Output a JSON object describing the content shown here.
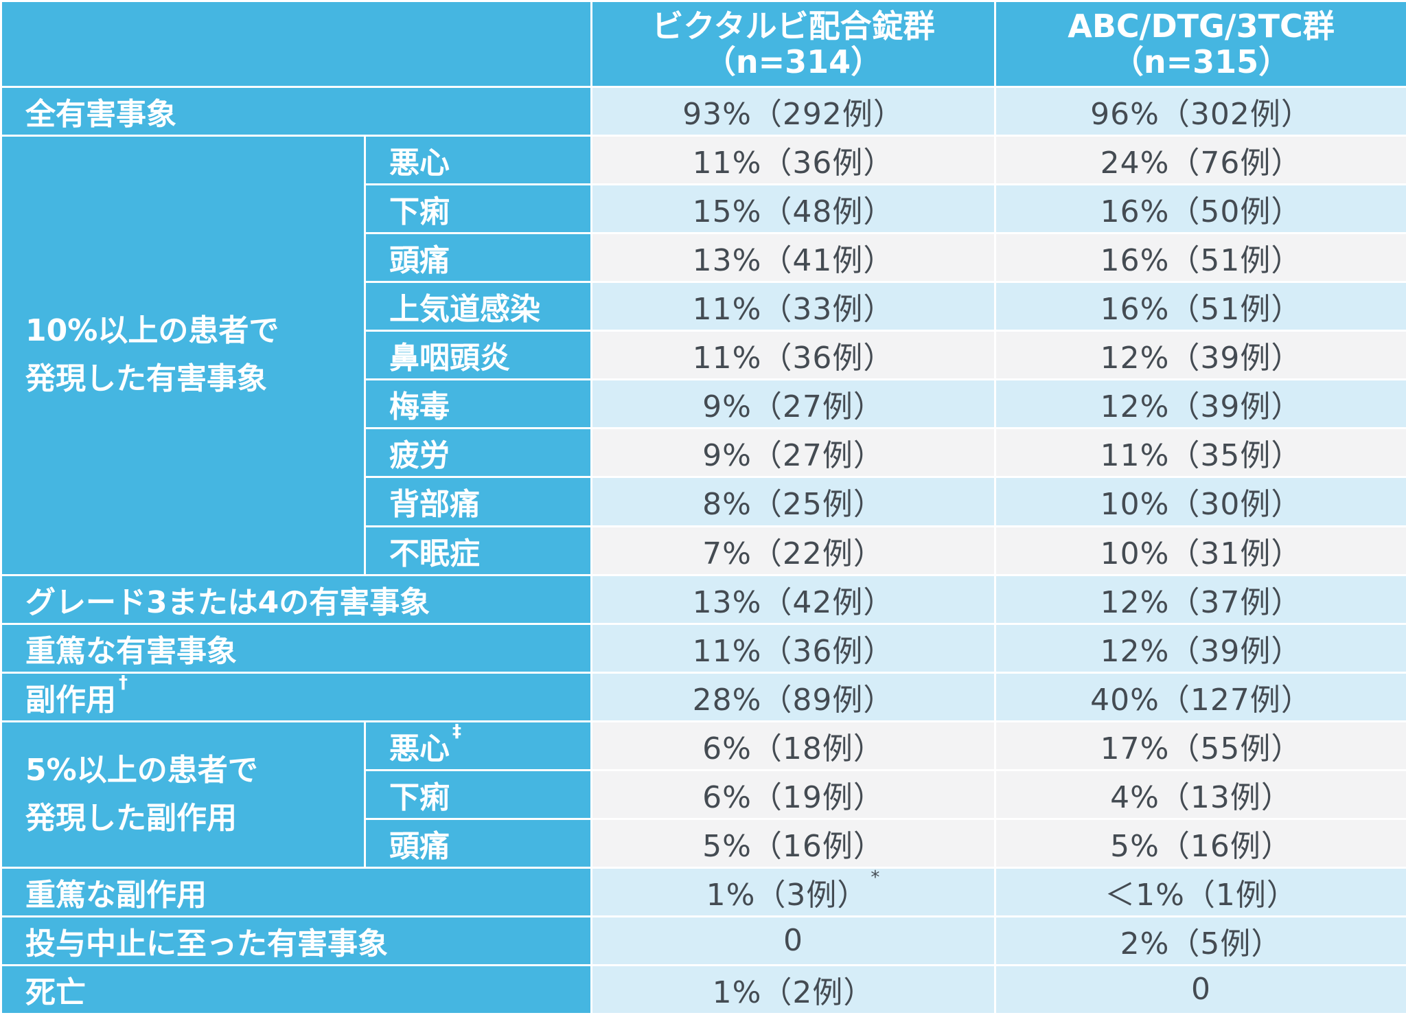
{
  "header": {
    "col1_line1": "ビクタルビ配合錠群",
    "col1_line2": "（n=314）",
    "col2_line1": "ABC/DTG/3TC群",
    "col2_line2": "（n=315）"
  },
  "rows": [
    {
      "label": "全有害事象",
      "v1": "93%（292例）",
      "v2": "96%（302例）"
    },
    {
      "group_line1": "10%以上の患者で",
      "group_line2": "発現した有害事象",
      "sub": "悪心",
      "v1": "11%（36例）",
      "v2": "24%（76例）"
    },
    {
      "sub": "下痢",
      "v1": "15%（48例）",
      "v2": "16%（50例）"
    },
    {
      "sub": "頭痛",
      "v1": "13%（41例）",
      "v2": "16%（51例）"
    },
    {
      "sub": "上気道感染",
      "v1": "11%（33例）",
      "v2": "16%（51例）"
    },
    {
      "sub": "鼻咽頭炎",
      "v1": "11%（36例）",
      "v2": "12%（39例）"
    },
    {
      "sub": "梅毒",
      "v1": "9%（27例）",
      "v2": "12%（39例）"
    },
    {
      "sub": "疲労",
      "v1": "9%（27例）",
      "v2": "11%（35例）"
    },
    {
      "sub": "背部痛",
      "v1": "8%（25例）",
      "v2": "10%（30例）"
    },
    {
      "sub": "不眠症",
      "v1": "7%（22例）",
      "v2": "10%（31例）"
    },
    {
      "label": "グレード3または4の有害事象",
      "v1": "13%（42例）",
      "v2": "12%（37例）"
    },
    {
      "label": "重篤な有害事象",
      "v1": "11%（36例）",
      "v2": "12%（39例）"
    },
    {
      "label": "副作用",
      "label_sup": "†",
      "v1": "28%（89例）",
      "v2": "40%（127例）"
    },
    {
      "group_line1": "5%以上の患者で",
      "group_line2": "発現した副作用",
      "sub": "悪心",
      "sub_sup": "‡",
      "v1": "6%（18例）",
      "v2": "17%（55例）"
    },
    {
      "sub": "下痢",
      "v1": "6%（19例）",
      "v2": "4%（13例）"
    },
    {
      "sub": "頭痛",
      "v1": "5%（16例）",
      "v2": "5%（16例）"
    },
    {
      "label": "重篤な副作用",
      "v1": "1%（3例）",
      "v1_sup": "*",
      "v2": "＜1%（1例）"
    },
    {
      "label": "投与中止に至った有害事象",
      "v1": "0",
      "v2": "2%（5例）"
    },
    {
      "label": "死亡",
      "v1": "1%（2例）",
      "v2": "0"
    }
  ],
  "colors": {
    "header_bg": "#45b6e1",
    "row_light_blue": "#d6edf8",
    "row_light_gray": "#f3f3f4",
    "value_text": "#444b52"
  }
}
